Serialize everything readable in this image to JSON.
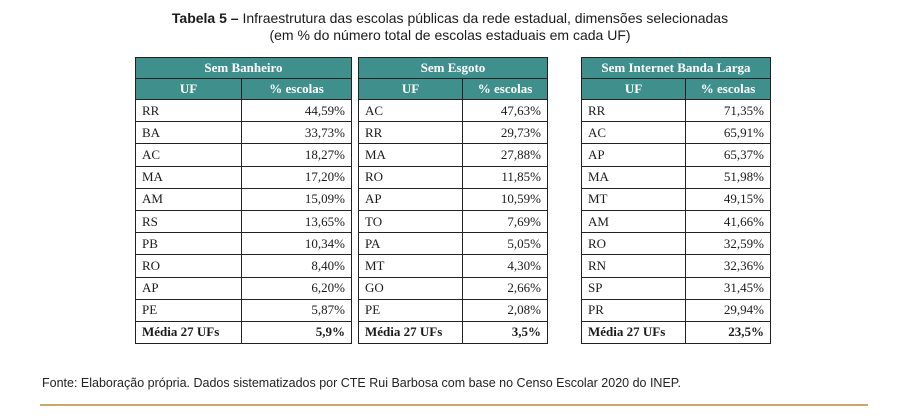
{
  "caption": {
    "label": "Tabela 5 –",
    "title": " Infraestrutura das escolas públicas da rede estadual, dimensões selecionadas",
    "subtitle": "(em % do número total de escolas estaduais em cada UF)"
  },
  "tables": [
    {
      "title": "Sem Banheiro",
      "col_uf": "UF",
      "col_pct": "% escolas",
      "rows": [
        [
          "RR",
          "44,59%"
        ],
        [
          "BA",
          "33,73%"
        ],
        [
          "AC",
          "18,27%"
        ],
        [
          "MA",
          "17,20%"
        ],
        [
          "AM",
          "15,09%"
        ],
        [
          "RS",
          "13,65%"
        ],
        [
          "PB",
          "10,34%"
        ],
        [
          "RO",
          "8,40%"
        ],
        [
          "AP",
          "6,20%"
        ],
        [
          "PE",
          "5,87%"
        ]
      ],
      "avg_label": "Média 27 UFs",
      "avg_value": "5,9%"
    },
    {
      "title": "Sem Esgoto",
      "col_uf": "UF",
      "col_pct": "% escolas",
      "rows": [
        [
          "AC",
          "47,63%"
        ],
        [
          "RR",
          "29,73%"
        ],
        [
          "MA",
          "27,88%"
        ],
        [
          "RO",
          "11,85%"
        ],
        [
          "AP",
          "10,59%"
        ],
        [
          "TO",
          "7,69%"
        ],
        [
          "PA",
          "5,05%"
        ],
        [
          "MT",
          "4,30%"
        ],
        [
          "GO",
          "2,66%"
        ],
        [
          "PE",
          "2,08%"
        ]
      ],
      "avg_label": "Média 27 UFs",
      "avg_value": "3,5%"
    },
    {
      "title": "Sem Internet Banda Larga",
      "col_uf": "UF",
      "col_pct": "% escolas",
      "rows": [
        [
          "RR",
          "71,35%"
        ],
        [
          "AC",
          "65,91%"
        ],
        [
          "AP",
          "65,37%"
        ],
        [
          "MA",
          "51,98%"
        ],
        [
          "MT",
          "49,15%"
        ],
        [
          "AM",
          "41,66%"
        ],
        [
          "RO",
          "32,59%"
        ],
        [
          "RN",
          "32,36%"
        ],
        [
          "SP",
          "31,45%"
        ],
        [
          "PR",
          "29,94%"
        ]
      ],
      "avg_label": "Média 27 UFs",
      "avg_value": "23,5%"
    }
  ],
  "source": "Fonte: Elaboração própria. Dados sistematizados por CTE Rui Barbosa com base no Censo Escolar 2020 do INEP."
}
